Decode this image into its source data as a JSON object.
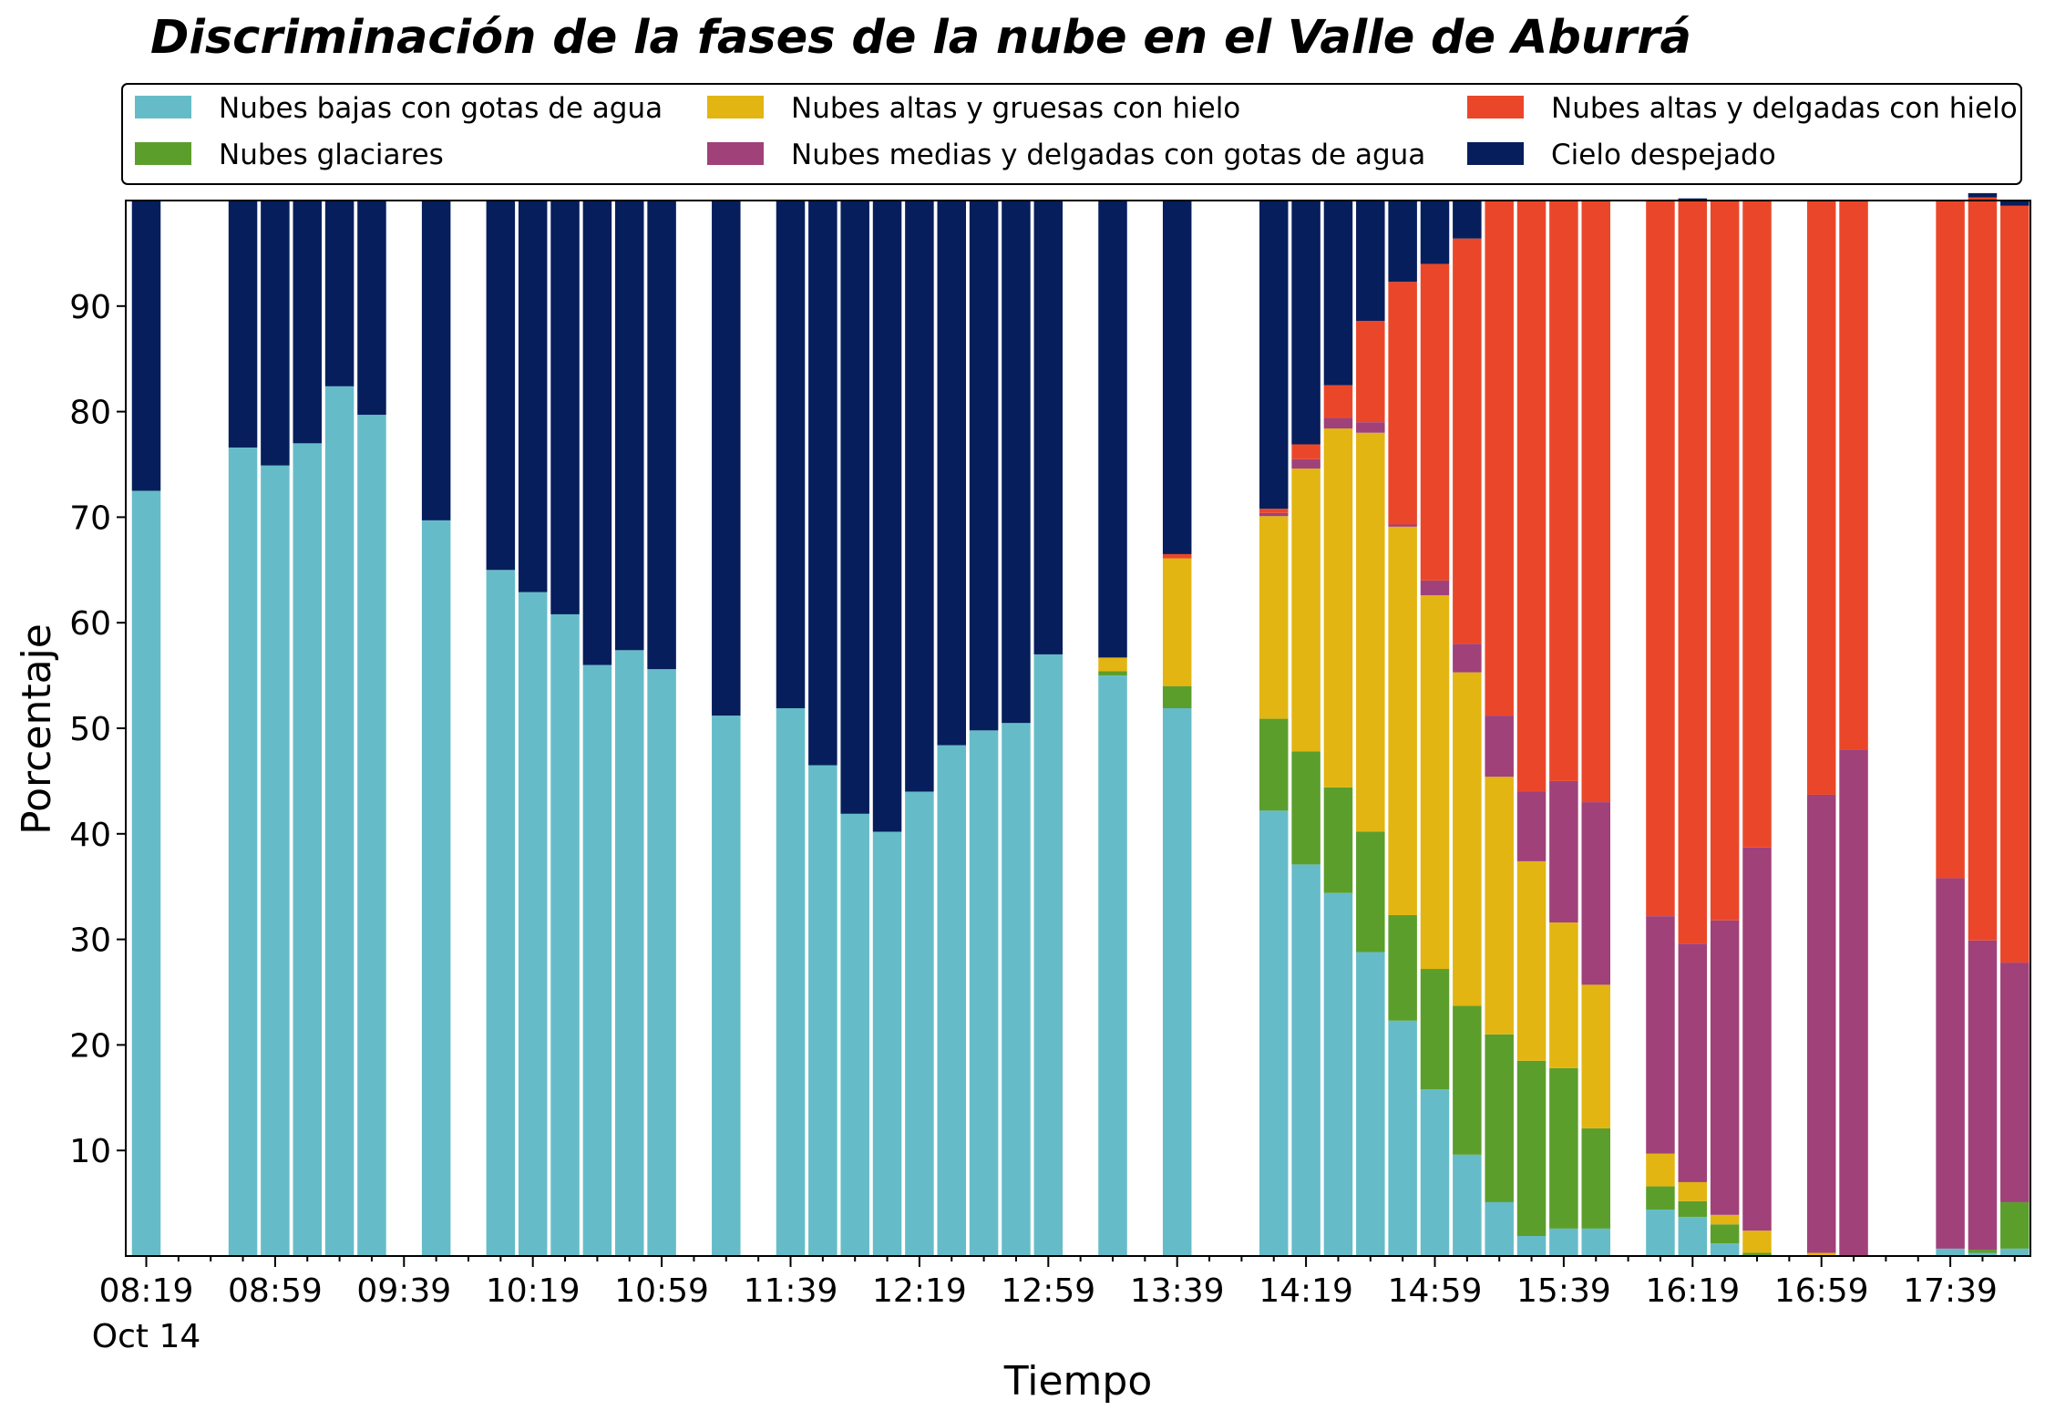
{
  "chart_data": {
    "type": "bar",
    "stacked": true,
    "title": "Discriminación de la fases de la nube en el Valle de Aburrá",
    "xlabel": "Tiempo",
    "ylabel": "Porcentaje",
    "ylim": [
      0,
      100
    ],
    "yticks": [
      10,
      20,
      30,
      40,
      50,
      60,
      70,
      80,
      90
    ],
    "x_tick_labels": [
      "08:19",
      "08:59",
      "09:39",
      "10:19",
      "10:59",
      "11:39",
      "12:19",
      "12:59",
      "13:39",
      "14:19",
      "14:59",
      "15:39",
      "16:19",
      "16:59",
      "17:39"
    ],
    "x_date_label": "Oct 14",
    "x": [
      "08:19",
      "08:29",
      "08:39",
      "08:49",
      "08:59",
      "09:09",
      "09:19",
      "09:29",
      "09:39",
      "09:49",
      "09:59",
      "10:09",
      "10:19",
      "10:29",
      "10:39",
      "10:49",
      "10:59",
      "11:09",
      "11:19",
      "11:29",
      "11:39",
      "11:49",
      "11:59",
      "12:09",
      "12:19",
      "12:29",
      "12:39",
      "12:49",
      "12:59",
      "13:09",
      "13:19",
      "13:29",
      "13:39",
      "13:49",
      "13:59",
      "14:09",
      "14:19",
      "14:29",
      "14:39",
      "14:49",
      "14:59",
      "15:09",
      "15:19",
      "15:29",
      "15:39",
      "15:49",
      "15:59",
      "16:09",
      "16:19",
      "16:29",
      "16:39",
      "16:49",
      "16:59",
      "17:09",
      "17:19",
      "17:29",
      "17:39",
      "17:49",
      "17:59"
    ],
    "legend_position": "top, above plot",
    "series": [
      {
        "name": "Nubes bajas con gotas de agua",
        "color": "#65bcc8",
        "values": [
          72.5,
          null,
          null,
          76.6,
          74.9,
          77.0,
          82.4,
          79.7,
          null,
          69.7,
          null,
          65.0,
          62.9,
          60.8,
          56.0,
          57.4,
          55.6,
          null,
          51.2,
          null,
          51.9,
          46.5,
          41.9,
          40.2,
          44.0,
          48.4,
          49.8,
          50.5,
          57.0,
          null,
          55.0,
          null,
          51.9,
          null,
          null,
          42.2,
          37.1,
          34.4,
          28.8,
          22.3,
          15.8,
          9.6,
          5.1,
          1.9,
          2.6,
          2.6,
          null,
          4.4,
          3.7,
          1.2,
          0.0,
          null,
          0.0,
          0.0,
          null,
          null,
          0.7,
          0.3,
          0.7
        ]
      },
      {
        "name": "Nubes glaciares",
        "color": "#5c9e2c",
        "values": [
          0,
          null,
          null,
          0,
          0,
          0,
          0,
          0,
          null,
          0,
          null,
          0,
          0,
          0,
          0,
          0,
          0,
          null,
          0,
          null,
          0,
          0,
          0,
          0,
          0,
          0,
          0,
          0,
          0,
          null,
          0.4,
          null,
          2.1,
          null,
          null,
          8.7,
          10.7,
          10.0,
          11.4,
          10.0,
          11.4,
          14.1,
          15.9,
          16.6,
          15.2,
          9.5,
          null,
          2.2,
          1.5,
          1.8,
          0.3,
          null,
          0,
          0,
          null,
          null,
          0,
          0.3,
          4.4
        ]
      },
      {
        "name": "Nubes altas y gruesas con hielo",
        "color": "#e2b512",
        "values": [
          0,
          null,
          null,
          0,
          0,
          0,
          0,
          0,
          null,
          0,
          null,
          0,
          0,
          0,
          0,
          0,
          0,
          null,
          0,
          null,
          0,
          0,
          0,
          0,
          0,
          0,
          0,
          0,
          0,
          null,
          1.3,
          null,
          12.1,
          null,
          null,
          19.2,
          26.8,
          34.0,
          37.8,
          36.8,
          35.4,
          31.6,
          24.4,
          18.9,
          13.8,
          13.6,
          null,
          3.1,
          1.8,
          0.9,
          2.1,
          null,
          0.3,
          0,
          null,
          null,
          0,
          0,
          0
        ]
      },
      {
        "name": "Nubes medias y delgadas con gotas de agua",
        "color": "#a0417a",
        "values": [
          0,
          null,
          null,
          0,
          0,
          0,
          0,
          0,
          null,
          0,
          null,
          0,
          0,
          0,
          0,
          0,
          0,
          null,
          0,
          null,
          0,
          0,
          0,
          0,
          0,
          0,
          0,
          0,
          0,
          null,
          0,
          null,
          0,
          null,
          null,
          0.3,
          0.9,
          1.0,
          1.0,
          0.2,
          1.4,
          2.7,
          5.8,
          6.6,
          13.4,
          17.3,
          null,
          22.5,
          22.6,
          27.9,
          36.3,
          null,
          43.4,
          48.0,
          null,
          null,
          35.1,
          29.3,
          22.7
        ]
      },
      {
        "name": "Nubes altas y delgadas con hielo",
        "color": "#ea472a",
        "values": [
          0,
          null,
          null,
          0,
          0,
          0,
          0,
          0,
          null,
          0,
          null,
          0,
          0,
          0,
          0,
          0,
          0,
          null,
          0,
          null,
          0,
          0,
          0,
          0,
          0,
          0,
          0,
          0,
          0,
          null,
          0,
          null,
          0.4,
          null,
          null,
          0.4,
          1.4,
          3.1,
          9.6,
          23.0,
          30.0,
          38.4,
          48.8,
          56.0,
          55.0,
          57.0,
          null,
          67.8,
          70.4,
          68.2,
          61.3,
          null,
          56.3,
          52.0,
          null,
          null,
          64.2,
          70.4,
          71.7
        ]
      },
      {
        "name": "Cielo despejado",
        "color": "#061e5c",
        "values": [
          27.5,
          null,
          null,
          23.4,
          25.1,
          23.0,
          17.6,
          20.3,
          null,
          30.3,
          null,
          35.0,
          37.1,
          39.2,
          44.0,
          42.6,
          44.4,
          null,
          48.8,
          null,
          48.1,
          53.5,
          58.1,
          59.8,
          56.0,
          51.6,
          50.2,
          49.5,
          43.0,
          null,
          43.3,
          null,
          33.5,
          null,
          null,
          29.2,
          23.1,
          17.5,
          11.4,
          7.7,
          6.0,
          3.6,
          0,
          0,
          0,
          0,
          null,
          0,
          0.2,
          0,
          0,
          null,
          0,
          0,
          null,
          null,
          0,
          0.4,
          0.5
        ]
      }
    ]
  }
}
